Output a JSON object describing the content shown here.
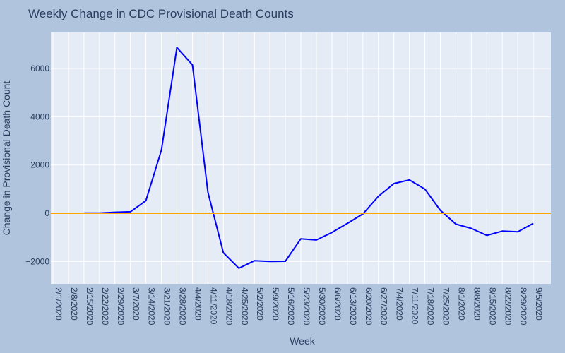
{
  "chart_data": {
    "type": "line",
    "title": "Weekly Change in CDC Provisional Death Counts",
    "xlabel": "Week",
    "ylabel": "Change in Provisional Death Count",
    "x_tick_labels": [
      "2/1/2020",
      "2/8/2020",
      "2/15/2020",
      "2/22/2020",
      "2/29/2020",
      "3/7/2020",
      "3/14/2020",
      "3/21/2020",
      "3/28/2020",
      "4/4/2020",
      "4/11/2020",
      "4/18/2020",
      "4/25/2020",
      "5/2/2020",
      "5/9/2020",
      "5/16/2020",
      "5/23/2020",
      "5/30/2020",
      "6/6/2020",
      "6/13/2020",
      "6/20/2020",
      "6/27/2020",
      "7/4/2020",
      "7/11/2020",
      "7/18/2020",
      "7/25/2020",
      "8/1/2020",
      "8/8/2020",
      "8/15/2020",
      "8/22/2020",
      "8/29/2020",
      "9/5/2020"
    ],
    "y_tick_values": [
      -2000,
      0,
      2000,
      4000,
      6000
    ],
    "y_tick_labels": [
      "−2000",
      "0",
      "2000",
      "4000",
      "6000"
    ],
    "ylim": [
      -2900,
      7300
    ],
    "grid": true,
    "series": [
      {
        "color": "#0000ff",
        "x": [
          "2/15/2020",
          "2/22/2020",
          "2/29/2020",
          "3/7/2020",
          "3/14/2020",
          "3/21/2020",
          "3/28/2020",
          "4/4/2020",
          "4/11/2020",
          "4/18/2020",
          "4/25/2020",
          "5/2/2020",
          "5/9/2020",
          "5/16/2020",
          "5/23/2020",
          "5/30/2020",
          "6/6/2020",
          "6/13/2020",
          "6/20/2020",
          "6/27/2020",
          "7/4/2020",
          "7/11/2020",
          "7/18/2020",
          "7/25/2020",
          "8/1/2020",
          "8/8/2020",
          "8/15/2020",
          "8/22/2020",
          "8/29/2020",
          "9/5/2020"
        ],
        "values": [
          5,
          10,
          40,
          60,
          520,
          2620,
          6870,
          6150,
          870,
          -1640,
          -2280,
          -1970,
          -2000,
          -1990,
          -1060,
          -1110,
          -800,
          -420,
          -30,
          700,
          1230,
          1380,
          1000,
          120,
          -450,
          -630,
          -920,
          -740,
          -770,
          -420
        ]
      },
      {
        "color": "#ffa500",
        "x": [
          "2/1/2020",
          "9/5/2020"
        ],
        "values": [
          0,
          0
        ],
        "extends_full_width": true
      }
    ]
  }
}
